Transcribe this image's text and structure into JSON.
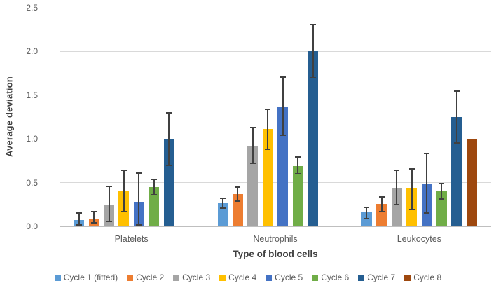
{
  "chart_data": {
    "type": "bar",
    "title": "",
    "xlabel": "Type of blood cells",
    "ylabel": "Average deviation",
    "categories": [
      "Platelets",
      "Neutrophils",
      "Leukocytes"
    ],
    "ylim": [
      0,
      2.5
    ],
    "yticks": [
      0.0,
      0.5,
      1.0,
      1.5,
      2.0,
      2.5
    ],
    "ytick_labels": [
      "0.0",
      "0.5",
      "1.0",
      "1.5",
      "2.0",
      "2.5"
    ],
    "grid": true,
    "legend_position": "bottom",
    "error_bars": true,
    "series": [
      {
        "name": "Cycle 1 (fitted)",
        "color": "#5B9BD5",
        "values": [
          0.07,
          0.27,
          0.16
        ],
        "err_low": [
          0.02,
          0.21,
          0.09
        ],
        "err_high": [
          0.15,
          0.32,
          0.22
        ]
      },
      {
        "name": "Cycle 2",
        "color": "#ED7D31",
        "values": [
          0.09,
          0.37,
          0.26
        ],
        "err_low": [
          0.04,
          0.29,
          0.17
        ],
        "err_high": [
          0.17,
          0.45,
          0.34
        ]
      },
      {
        "name": "Cycle 3",
        "color": "#A5A5A5",
        "values": [
          0.25,
          0.92,
          0.44
        ],
        "err_low": [
          0.06,
          0.72,
          0.25
        ],
        "err_high": [
          0.46,
          1.13,
          0.64
        ]
      },
      {
        "name": "Cycle 4",
        "color": "#FFC000",
        "values": [
          0.41,
          1.11,
          0.43
        ],
        "err_low": [
          0.17,
          0.88,
          0.19
        ],
        "err_high": [
          0.64,
          1.34,
          0.66
        ]
      },
      {
        "name": "Cycle 5",
        "color": "#4472C4",
        "values": [
          0.28,
          1.37,
          0.49
        ],
        "err_low": [
          0.02,
          1.04,
          0.15
        ],
        "err_high": [
          0.61,
          1.71,
          0.83
        ]
      },
      {
        "name": "Cycle 6",
        "color": "#70AD47",
        "values": [
          0.45,
          0.69,
          0.4
        ],
        "err_low": [
          0.36,
          0.6,
          0.31
        ],
        "err_high": [
          0.54,
          0.79,
          0.49
        ]
      },
      {
        "name": "Cycle 7",
        "color": "#255E91",
        "values": [
          1.0,
          2.0,
          1.25
        ],
        "err_low": [
          0.7,
          1.7,
          0.95
        ],
        "err_high": [
          1.3,
          2.31,
          1.55
        ]
      },
      {
        "name": "Cycle 8",
        "color": "#9E480E",
        "values": [
          null,
          null,
          1.0
        ],
        "err_low": [
          null,
          null,
          null
        ],
        "err_high": [
          null,
          null,
          null
        ]
      }
    ]
  },
  "style_colors": {
    "gridline": "#D9D9D9",
    "axis_line": "#BFBFBF",
    "tick_text": "#595959",
    "title_text": "#404040",
    "error_bar": "#404040"
  }
}
